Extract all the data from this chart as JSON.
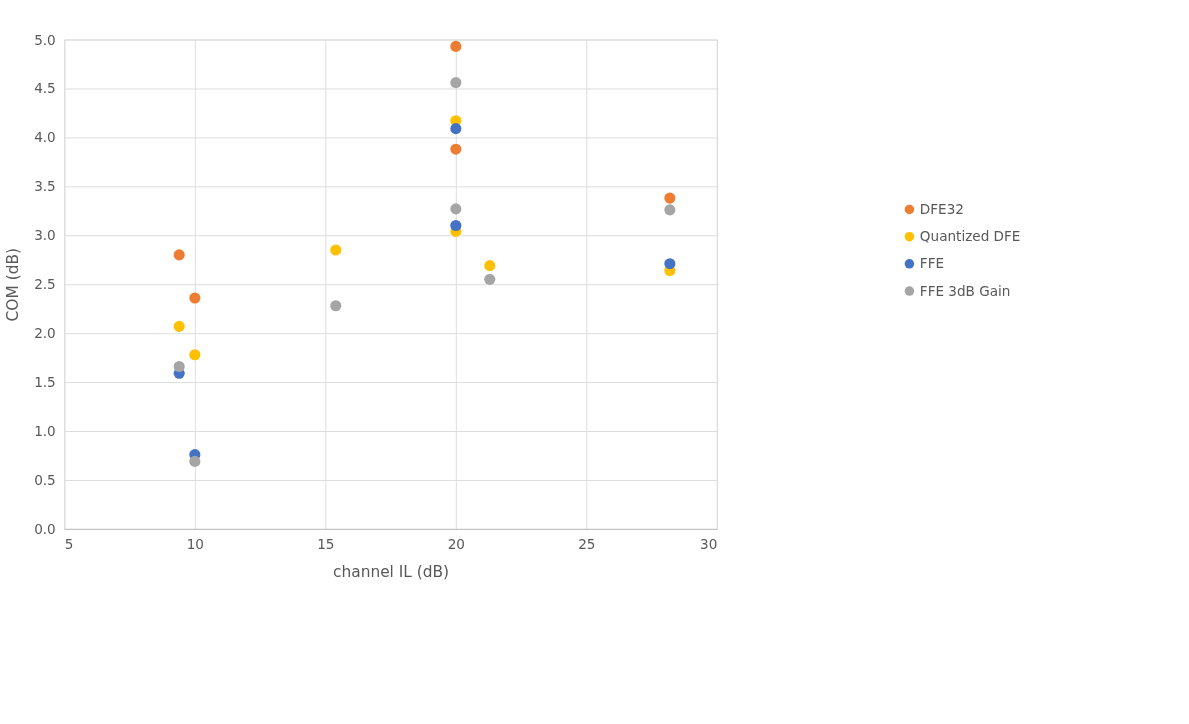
{
  "chart_data": {
    "type": "scatter",
    "xlabel": "channel IL (dB)",
    "ylabel": "COM (dB)",
    "xlim": [
      5,
      30
    ],
    "xticks": [
      5,
      10,
      15,
      20,
      25,
      30
    ],
    "ylim": [
      0,
      5
    ],
    "yticks": [
      {
        "value": 0,
        "label": "0.0"
      },
      {
        "value": 0.5,
        "label": "0.5"
      },
      {
        "value": 1,
        "label": "1.0"
      },
      {
        "value": 1.5,
        "label": "1.5"
      },
      {
        "value": 2,
        "label": "2.0"
      },
      {
        "value": 2.5,
        "label": "2.5"
      },
      {
        "value": 3,
        "label": "3.0"
      },
      {
        "value": 3.5,
        "label": "3.5"
      },
      {
        "value": 4,
        "label": "4.0"
      },
      {
        "value": 4.5,
        "label": "4.5"
      },
      {
        "value": 5,
        "label": "5.0"
      }
    ],
    "grid": true,
    "legend": "right",
    "marker": "circle",
    "series": [
      {
        "name": "DFE32",
        "color": "#ed7d31",
        "x": [
          9.4,
          10,
          20,
          20,
          28.2
        ],
        "values": [
          2.8,
          2.36,
          4.93,
          3.88,
          3.38
        ]
      },
      {
        "name": "Quantized DFE",
        "color": "#ffc000",
        "x": [
          9.4,
          10,
          15.4,
          20,
          20,
          21.3,
          28.2
        ],
        "values": [
          2.07,
          1.78,
          2.85,
          4.17,
          3.04,
          2.69,
          2.64
        ]
      },
      {
        "name": "FFE",
        "color": "#4472c4",
        "x": [
          9.4,
          10,
          20,
          20,
          28.2
        ],
        "values": [
          1.59,
          0.76,
          4.09,
          3.1,
          2.71
        ]
      },
      {
        "name": "FFE 3dB Gain",
        "color": "#a5a5a5",
        "x": [
          9.4,
          10,
          15.4,
          20,
          20,
          21.3,
          28.2
        ],
        "values": [
          1.66,
          0.69,
          2.28,
          4.56,
          3.27,
          2.55,
          3.26
        ]
      }
    ]
  }
}
